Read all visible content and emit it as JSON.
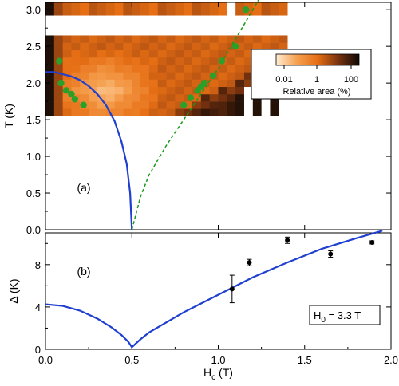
{
  "chart_data": [
    {
      "panel": "(a)",
      "type": "heatmap",
      "xlim": [
        0,
        2.0
      ],
      "ylim": [
        0,
        3.1
      ],
      "ylabel": "T (K)",
      "yticks": [
        "0.0",
        "0.5",
        "1.0",
        "1.5",
        "2.0",
        "2.5",
        "3.0"
      ],
      "heatmap": {
        "rows_T": [
          1.6,
          1.7,
          1.8,
          1.9,
          2.0,
          2.1,
          2.2,
          2.3,
          2.4,
          2.5,
          2.6,
          3.0
        ],
        "x_start": 0.0,
        "x_step": 0.05,
        "n_cols": 28,
        "color_scale_label": "Relative area (%)",
        "color_scale_ticks": [
          "0.01",
          "1",
          "100"
        ]
      },
      "series": [
        {
          "kind": "line",
          "color": "#1f3fd0",
          "points": [
            [
              0.0,
              2.15
            ],
            [
              0.05,
              2.15
            ],
            [
              0.1,
              2.12
            ],
            [
              0.15,
              2.09
            ],
            [
              0.2,
              2.04
            ],
            [
              0.25,
              1.96
            ],
            [
              0.3,
              1.85
            ],
            [
              0.35,
              1.7
            ],
            [
              0.4,
              1.48
            ],
            [
              0.44,
              1.2
            ],
            [
              0.47,
              0.9
            ],
            [
              0.49,
              0.5
            ],
            [
              0.5,
              0.0
            ]
          ]
        },
        {
          "kind": "dashed",
          "color": "#1a9a1a",
          "points": [
            [
              0.5,
              0.0
            ],
            [
              0.55,
              0.45
            ],
            [
              0.6,
              0.75
            ],
            [
              0.7,
              1.15
            ],
            [
              0.8,
              1.5
            ],
            [
              0.9,
              1.85
            ],
            [
              1.0,
              2.2
            ],
            [
              1.1,
              2.6
            ],
            [
              1.2,
              3.0
            ],
            [
              1.25,
              3.2
            ]
          ]
        },
        {
          "kind": "points",
          "color": "#2aa02a",
          "points": [
            [
              0.08,
              2.3
            ],
            [
              0.09,
              2.0
            ],
            [
              0.12,
              1.9
            ],
            [
              0.15,
              1.85
            ],
            [
              0.17,
              1.78
            ],
            [
              0.22,
              1.7
            ],
            [
              0.8,
              1.7
            ],
            [
              0.84,
              1.8
            ],
            [
              0.88,
              1.9
            ],
            [
              0.9,
              1.95
            ],
            [
              0.92,
              2.0
            ],
            [
              0.97,
              2.1
            ],
            [
              1.02,
              2.3
            ],
            [
              1.1,
              2.5
            ],
            [
              1.16,
              3.0
            ]
          ]
        }
      ]
    },
    {
      "panel": "(b)",
      "type": "scatter",
      "xlim": [
        0,
        2.0
      ],
      "ylim": [
        0,
        11
      ],
      "xlabel_main": "H",
      "xlabel_sub": "c",
      "xlabel_unit": " (T)",
      "ylabel": "Δ (K)",
      "xticks": [
        "0.0",
        "0.5",
        "1.0",
        "1.5",
        "2.0"
      ],
      "yticks": [
        "0",
        "4",
        "8"
      ],
      "annotation_main": "H",
      "annotation_sub": "0",
      "annotation_rest": " = 3.3 T",
      "series": [
        {
          "kind": "line",
          "color": "#1f3fd0",
          "points": [
            [
              0.0,
              4.25
            ],
            [
              0.1,
              4.1
            ],
            [
              0.2,
              3.65
            ],
            [
              0.3,
              2.9
            ],
            [
              0.38,
              2.1
            ],
            [
              0.44,
              1.35
            ],
            [
              0.48,
              0.7
            ],
            [
              0.5,
              0.2
            ],
            [
              0.55,
              0.95
            ],
            [
              0.6,
              1.6
            ],
            [
              0.8,
              3.5
            ],
            [
              1.0,
              5.15
            ],
            [
              1.2,
              6.8
            ],
            [
              1.4,
              8.2
            ],
            [
              1.6,
              9.5
            ],
            [
              1.8,
              10.5
            ],
            [
              1.95,
              11.2
            ]
          ]
        },
        {
          "kind": "errorbar",
          "color": "#000000",
          "points": [
            [
              1.08,
              5.7,
              1.3
            ],
            [
              1.18,
              8.2,
              0.3
            ],
            [
              1.4,
              10.3,
              0.3
            ],
            [
              1.65,
              9.0,
              0.3
            ],
            [
              1.89,
              10.1,
              0.15
            ]
          ]
        }
      ]
    }
  ]
}
